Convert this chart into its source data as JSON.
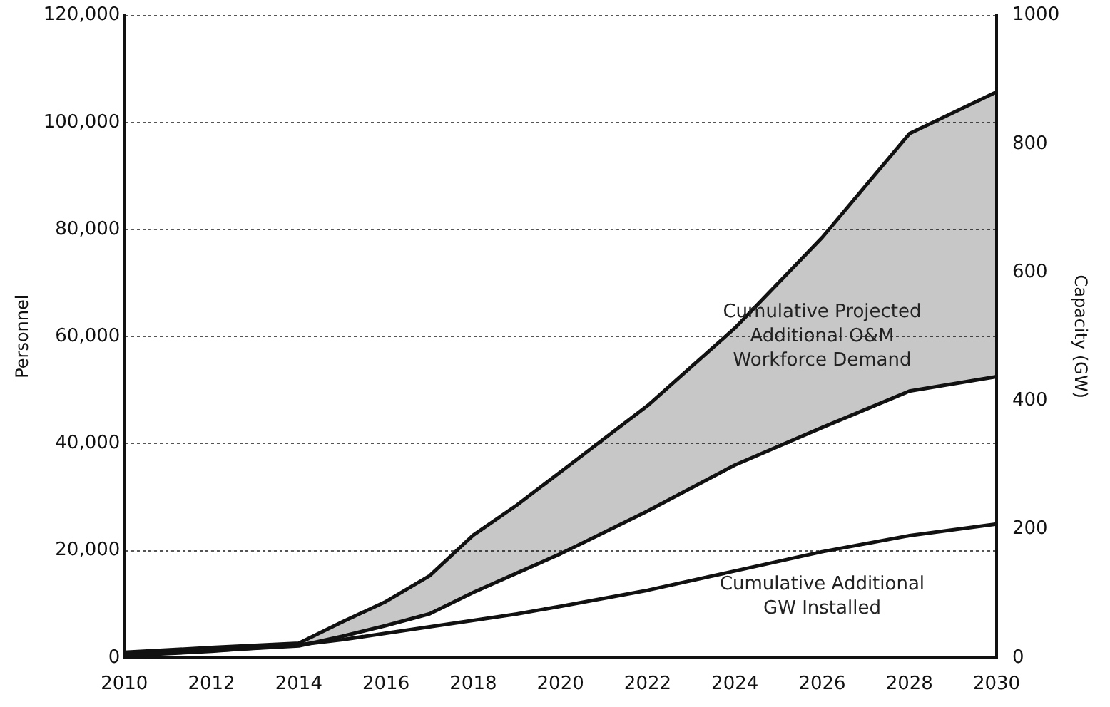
{
  "chart_data": {
    "type": "line",
    "ylabel": "Personnel",
    "y2label": "Capacity (GW)",
    "x": [
      2010,
      2012,
      2014,
      2015,
      2016,
      2017,
      2018,
      2019,
      2020,
      2022,
      2024,
      2026,
      2028,
      2030
    ],
    "series": [
      {
        "color": "#111111",
        "values": [
          500,
          1300,
          2200,
          4000,
          6000,
          8200,
          12200,
          15800,
          19400,
          27400,
          36000,
          43000,
          49800,
          52500
        ]
      },
      {
        "color": "#111111",
        "values": [
          1000,
          1900,
          2700,
          6700,
          10500,
          15300,
          22900,
          28500,
          34700,
          47100,
          61600,
          78500,
          97900,
          105700
        ],
        "lower": [
          500,
          1300,
          2200,
          4000,
          6000,
          8200,
          12200,
          15800,
          19400,
          27400,
          36000,
          43000,
          49800,
          52500
        ],
        "upper": [
          1000,
          1900,
          2700,
          6700,
          10500,
          15300,
          22900,
          28500,
          34700,
          47100,
          61600,
          78500,
          97900,
          105700
        ]
      },
      {
        "axis": "y2",
        "color": "#111111",
        "values": [
          3,
          10,
          20,
          28,
          38,
          48,
          58,
          68,
          80,
          105,
          135,
          165,
          190,
          208
        ]
      }
    ],
    "xlim": [
      2010,
      2030
    ],
    "xticks": [
      2010,
      2012,
      2014,
      2016,
      2018,
      2020,
      2022,
      2024,
      2026,
      2028,
      2030
    ],
    "ylim": [
      0,
      120000
    ],
    "yticks": [
      0,
      {
        "value": 20000,
        "label": "20,000"
      },
      {
        "value": 40000,
        "label": "40,000"
      },
      {
        "value": 60000,
        "label": "60,000"
      },
      {
        "value": 80000,
        "label": "80,000"
      },
      {
        "value": 100000,
        "label": "100,000"
      },
      {
        "value": 120000,
        "label": "120,000"
      }
    ],
    "y2lim": [
      0,
      1000
    ],
    "y2ticks": [
      0,
      200,
      400,
      600,
      800,
      1000
    ],
    "grid": "y",
    "legend": false,
    "marker": "none",
    "line_style": "solid",
    "annotations": [
      "Cumulative Projected\nAdditional O&M\nWorkforce Demand",
      "Cumulative Additional\nGW Installed"
    ]
  }
}
